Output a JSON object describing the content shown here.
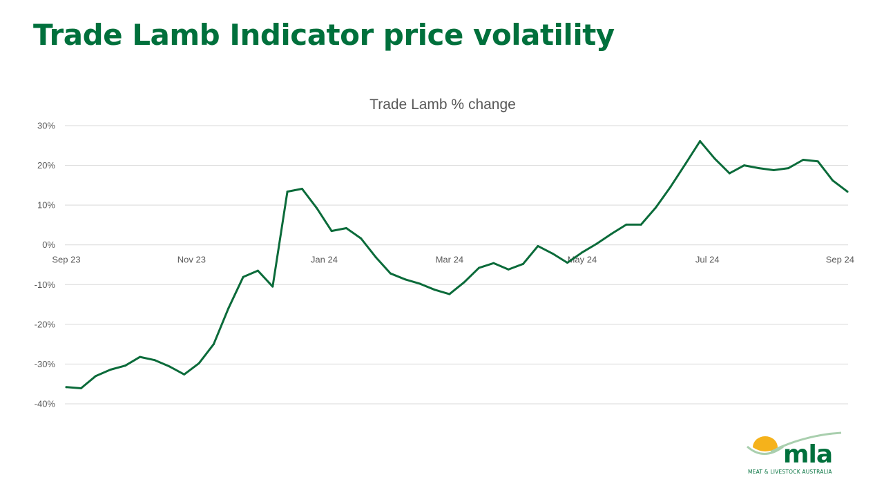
{
  "slide": {
    "title": "Trade Lamb Indicator price volatility"
  },
  "logo": {
    "wordmark": "mla",
    "tagline": "MEAT & LIVESTOCK AUSTRALIA",
    "colors": {
      "green": "#00703c",
      "sun": "#f5b21b",
      "arc": "#a9cfae"
    }
  },
  "colors": {
    "title": "#00703c",
    "line": "#0b6b3a",
    "grid": "#d9d9d9",
    "text": "#595959"
  },
  "chart_data": {
    "type": "line",
    "title": "Trade Lamb % change",
    "xlabel": "",
    "ylabel": "",
    "ylim": [
      -40,
      30
    ],
    "y_ticks": [
      30,
      20,
      10,
      0,
      -10,
      -20,
      -30,
      -40
    ],
    "y_tick_labels": [
      "30%",
      "20%",
      "10%",
      "0%",
      "-10%",
      "-20%",
      "-30%",
      "-40%"
    ],
    "x_tick_labels": [
      "Sep 23",
      "Nov 23",
      "Jan 24",
      "Mar 24",
      "May 24",
      "Jul 24",
      "Sep 24"
    ],
    "x_tick_index": [
      0,
      8.5,
      17.5,
      26,
      35,
      43.5,
      52.5
    ],
    "grid": true,
    "legend": "none",
    "series": [
      {
        "values": [
          -35.8,
          -36.1,
          -33,
          -31.4,
          -30.4,
          -28.2,
          -29,
          -30.6,
          -32.6,
          -29.8,
          -25,
          -16,
          -8.1,
          -6.5,
          -10.5,
          13.4,
          14.1,
          9.2,
          3.5,
          4.2,
          1.6,
          -3.1,
          -7.2,
          -8.7,
          -9.8,
          -11.3,
          -12.4,
          -9.4,
          -5.8,
          -4.6,
          -6.2,
          -4.8,
          -0.3,
          -2.2,
          -4.5,
          -1.9,
          0.3,
          2.8,
          5.1,
          5.1,
          9.4,
          14.6,
          20.3,
          26.1,
          21.7,
          18,
          20,
          19.3,
          18.8,
          19.3,
          21.4,
          21,
          16.2,
          13.4
        ]
      }
    ]
  }
}
